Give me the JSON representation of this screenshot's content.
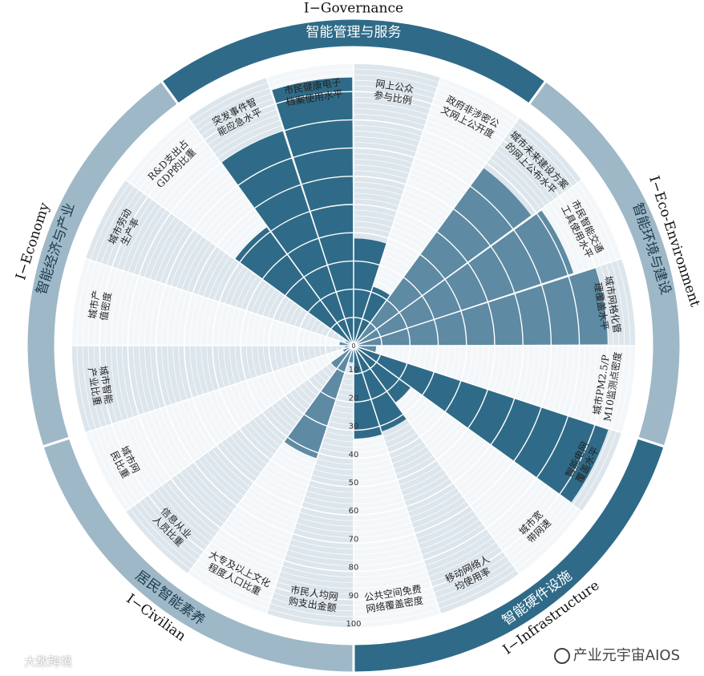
{
  "colors": {
    "ring_dark": "#2f6b88",
    "ring_light": "#9fb8c8",
    "grid": "#ffffff",
    "sector_bg": "#dde6ec",
    "gap_bg": "#f4f7f9"
  },
  "watermarks": {
    "left": "大数跨境",
    "right": "产业元宇宙AIOS"
  },
  "chart_data": {
    "type": "polar-bar",
    "rmax": 100,
    "radial_ticks": [
      10,
      20,
      30,
      40,
      50,
      60,
      70,
      80,
      90,
      100
    ],
    "outer_labels": [
      {
        "text": "I−Governance",
        "angle": 0
      },
      {
        "text": "I−Eco-Environment",
        "angle": 72
      },
      {
        "text": "I−Infrastructure",
        "angle": 144
      },
      {
        "text": "I−Civilian",
        "angle": 216
      },
      {
        "text": "I−Economy",
        "angle": 288
      }
    ],
    "groups": [
      {
        "name": "智能管理与服务",
        "start": -36,
        "end": 36,
        "tone": "dark"
      },
      {
        "name": "智能环境与建设",
        "start": 36,
        "end": 108,
        "tone": "light"
      },
      {
        "name": "智能硬件设施",
        "start": 108,
        "end": 180,
        "tone": "dark"
      },
      {
        "name": "居民智能素养",
        "start": 180,
        "end": 252,
        "tone": "light"
      },
      {
        "name": "智能经济与产业",
        "start": 252,
        "end": 324,
        "tone": "light"
      }
    ],
    "indicators": [
      {
        "label": "网上公众参与比例",
        "value": 38,
        "group": 0
      },
      {
        "label": "政府非涉密公文网上公开度",
        "value": 22,
        "group": 0
      },
      {
        "label": "城市未来建设方案的网上公布水平",
        "value": 78,
        "group": 1
      },
      {
        "label": "市民智能交通工具使用水平",
        "value": 82,
        "group": 1
      },
      {
        "label": "城市网格化管理覆盖水平",
        "value": 90,
        "group": 1
      },
      {
        "label": "城市PM2.5/PM10监测点密度",
        "value": 8,
        "group": 1
      },
      {
        "label": "智能电网覆盖水平",
        "value": 95,
        "group": 2
      },
      {
        "label": "城市宽带网速",
        "value": 25,
        "group": 2
      },
      {
        "label": "移动网络人均使用率",
        "value": 32,
        "group": 2
      },
      {
        "label": "公共空间免费网络覆盖密度",
        "value": 33,
        "group": 2
      },
      {
        "label": "市民人均网购支出金额",
        "value": 6,
        "group": 3
      },
      {
        "label": "大专及以上文化程度人口比重",
        "value": 42,
        "group": 3
      },
      {
        "label": "信息从业人员比重",
        "value": 10,
        "group": 3
      },
      {
        "label": "城市网民比重",
        "value": 4,
        "group": 4
      },
      {
        "label": "城市智能产业比重",
        "value": 3,
        "group": 4
      },
      {
        "label": "城市产值密度",
        "value": 5,
        "group": 4
      },
      {
        "label": "城市劳动生产率",
        "value": 3,
        "group": 4
      },
      {
        "label": "R&D支出占GDP的比重",
        "value": 52,
        "group": 0
      },
      {
        "label": "突发事件智能应急水平",
        "value": 80,
        "group": 0
      },
      {
        "label": "市民健康电子档案使用水平",
        "value": 95,
        "group": 0
      }
    ]
  }
}
